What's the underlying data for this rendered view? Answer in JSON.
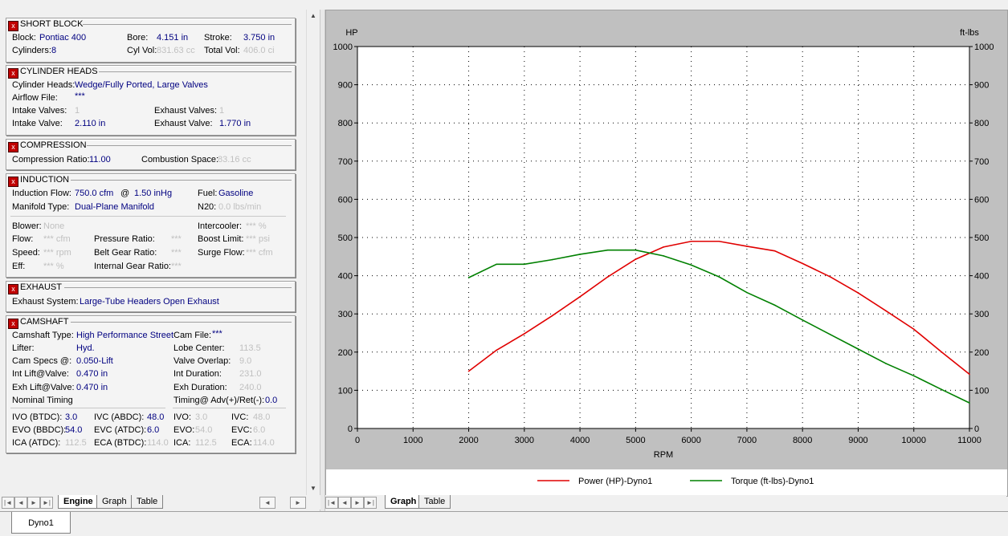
{
  "short_block": {
    "title": "SHORT BLOCK",
    "block_label": "Block:",
    "block_value": "Pontiac 400",
    "bore_label": "Bore:",
    "bore_value": "4.151 in",
    "stroke_label": "Stroke:",
    "stroke_value": "3.750 in",
    "cylinders_label": "Cylinders:",
    "cylinders_value": "8",
    "cylvol_label": "Cyl Vol:",
    "cylvol_value": "831.63 cc",
    "totalvol_label": "Total Vol:",
    "totalvol_value": "406.0 ci"
  },
  "cylinder_heads": {
    "title": "CYLINDER HEADS",
    "heads_label": "Cylinder Heads:",
    "heads_value": "Wedge/Fully Ported, Large Valves",
    "airflow_label": "Airflow File:",
    "airflow_value": "***",
    "intake_valves_label": "Intake Valves:",
    "intake_valves_value": "1",
    "exhaust_valves_label": "Exhaust Valves:",
    "exhaust_valves_value": "1",
    "intake_valve_label": "Intake Valve:",
    "intake_valve_value": "2.110 in",
    "exhaust_valve_label": "Exhaust Valve:",
    "exhaust_valve_value": "1.770 in"
  },
  "compression": {
    "title": "COMPRESSION",
    "ratio_label": "Compression Ratio:",
    "ratio_value": "11.00",
    "space_label": "Combustion Space:",
    "space_value": "83.16 cc"
  },
  "induction": {
    "title": "INDUCTION",
    "flow_label": "Induction Flow:",
    "flow_value": "750.0 cfm",
    "at_label": "@",
    "at_value": "1.50 inHg",
    "fuel_label": "Fuel:",
    "fuel_value": "Gasoline",
    "manifold_label": "Manifold Type:",
    "manifold_value": "Dual-Plane Manifold",
    "n2o_label": "N20:",
    "n2o_value": "0.0 lbs/min",
    "blower_label": "Blower:",
    "blower_value": "None",
    "intercooler_label": "Intercooler:",
    "intercooler_value": "*** %",
    "bflow_label": "Flow:",
    "bflow_value": "*** cfm",
    "pressure_ratio_label": "Pressure Ratio:",
    "pressure_ratio_value": "***",
    "boost_label": "Boost Limit:",
    "boost_value": "*** psi",
    "speed_label": "Speed:",
    "speed_value": "*** rpm",
    "belt_label": "Belt Gear Ratio:",
    "belt_value": "***",
    "surge_label": "Surge Flow:",
    "surge_value": "*** cfm",
    "eff_label": "Eff:",
    "eff_value": "*** %",
    "internal_label": "Internal Gear Ratio:",
    "internal_value": "***"
  },
  "exhaust": {
    "title": "EXHAUST",
    "system_label": "Exhaust System:",
    "system_value": "Large-Tube Headers Open Exhaust"
  },
  "camshaft": {
    "title": "CAMSHAFT",
    "type_label": "Camshaft Type:",
    "type_value": "High Performance Street",
    "file_label": "Cam File:",
    "file_value": "***",
    "lifter_label": "Lifter:",
    "lifter_value": "Hyd.",
    "lobe_label": "Lobe Center:",
    "lobe_value": "113.5",
    "specs_label": "Cam Specs @:",
    "specs_value": "0.050-Lift",
    "overlap_label": "Valve Overlap:",
    "overlap_value": "9.0",
    "intlift_label": "Int Lift@Valve:",
    "intlift_value": "0.470 in",
    "intdur_label": "Int Duration:",
    "intdur_value": "231.0",
    "exhlift_label": "Exh Lift@Valve:",
    "exhlift_value": "0.470 in",
    "exhdur_label": "Exh Duration:",
    "exhdur_value": "240.0",
    "nominal_label": "Nominal Timing",
    "timing_label": "Timing@ Adv(+)/Ret(-):",
    "timing_value": "0.0",
    "ivo_label": "IVO  (BTDC):",
    "ivo_value": "3.0",
    "ivc_label": "IVC  (ABDC):",
    "ivc_value": "48.0",
    "ivo2_label": "IVO:",
    "ivo2_value": "3.0",
    "ivc2_label": "IVC:",
    "ivc2_value": "48.0",
    "evo_label": "EVO (BBDC):",
    "evo_value": "54.0",
    "evc_label": "EVC (ATDC):",
    "evc_value": "6.0",
    "evo2_label": "EVO:",
    "evo2_value": "54.0",
    "evc2_label": "EVC:",
    "evc2_value": "6.0",
    "ica_label": "ICA  (ATDC):",
    "ica_value": "112.5",
    "eca_label": "ECA (BTDC):",
    "eca_value": "114.0",
    "ica2_label": "ICA:",
    "ica2_value": "112.5",
    "eca2_label": "ECA:",
    "eca2_value": "114.0"
  },
  "left_tabs": [
    "Engine",
    "Graph",
    "Table"
  ],
  "right_tabs": [
    "Graph",
    "Table"
  ],
  "document_tab": "Dyno1",
  "colors": {
    "power": "#e00000",
    "torque": "#008000",
    "value_text": "#000080",
    "graph_bg": "#c0c0c0"
  },
  "chart_data": {
    "type": "line",
    "xlabel": "RPM",
    "ylabel": "HP",
    "y2label": "ft-lbs",
    "xlim": [
      0,
      11000
    ],
    "ylim": [
      0,
      1000
    ],
    "y2lim": [
      0,
      1000
    ],
    "xticks": [
      "0",
      "1000",
      "2000",
      "3000",
      "4000",
      "5000",
      "6000",
      "7000",
      "8000",
      "9000",
      "10000",
      "11000"
    ],
    "yticks": [
      "0",
      "100",
      "200",
      "300",
      "400",
      "500",
      "600",
      "700",
      "800",
      "900",
      "1000"
    ],
    "grid": true,
    "legend_position": "bottom-center",
    "series": [
      {
        "name": "Power (HP)-Dyno1",
        "color": "#e00000",
        "axis": "left",
        "x": [
          2000,
          2500,
          3000,
          3500,
          4000,
          4500,
          5000,
          5500,
          6000,
          6500,
          7000,
          7500,
          8000,
          8500,
          9000,
          9500,
          10000,
          10500,
          11000
        ],
        "y": [
          150,
          205,
          248,
          295,
          345,
          397,
          443,
          475,
          490,
          490,
          477,
          465,
          432,
          397,
          355,
          308,
          260,
          200,
          142
        ]
      },
      {
        "name": "Torque (ft-lbs)-Dyno1",
        "color": "#008000",
        "axis": "right",
        "x": [
          2000,
          2500,
          3000,
          3500,
          4000,
          4500,
          5000,
          5500,
          6000,
          6500,
          7000,
          7500,
          8000,
          8500,
          9000,
          9500,
          10000,
          10500,
          11000
        ],
        "y": [
          395,
          430,
          430,
          442,
          456,
          467,
          467,
          452,
          428,
          397,
          356,
          323,
          284,
          246,
          208,
          170,
          138,
          102,
          67
        ]
      }
    ]
  }
}
